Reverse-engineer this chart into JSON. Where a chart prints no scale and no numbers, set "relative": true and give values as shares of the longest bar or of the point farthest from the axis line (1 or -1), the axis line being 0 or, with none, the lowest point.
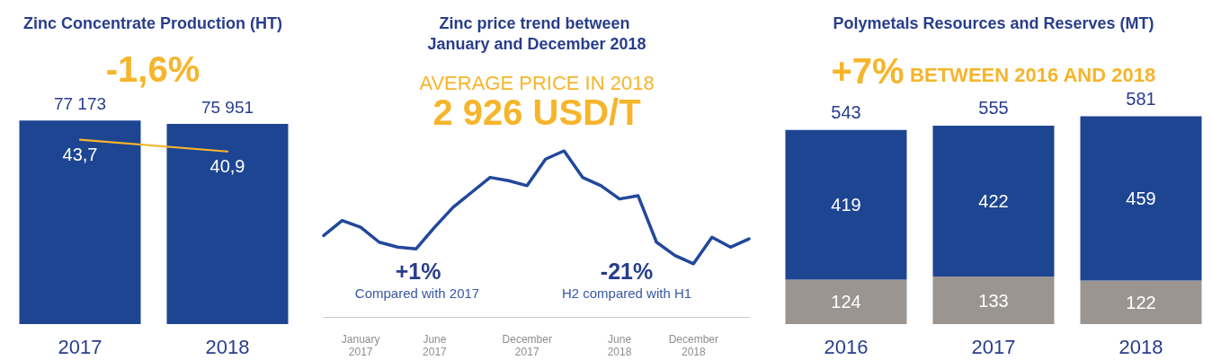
{
  "chart_data": [
    {
      "type": "bar",
      "title": "Zinc Concentrate Production (HT)",
      "subtitle": "-1,6%",
      "categories": [
        "2017",
        "2018"
      ],
      "series": [
        {
          "type": "bar",
          "color": "#1d4592",
          "values": [
            77173,
            75951
          ],
          "value_labels": [
            "77 173",
            "75 951"
          ]
        },
        {
          "type": "line",
          "axis": "y2",
          "color": "#f6b52b",
          "values": [
            43.7,
            40.9
          ],
          "value_labels": [
            "43,7",
            "40,9"
          ]
        }
      ],
      "tick_labels": "x",
      "marker": "none",
      "line_style": "solid"
    },
    {
      "type": "line",
      "title": "Zinc price trend between January and December 2018",
      "subtitle": "AVERAGE PRICE IN 2018",
      "annotations": [
        "2 926 USD/T",
        "+1%",
        "Compared with 2017",
        "-21%",
        "H2 compared with H1"
      ],
      "categories": [
        null,
        null,
        "January 2017",
        null,
        null,
        null,
        "June 2017",
        null,
        null,
        null,
        null,
        "December 2017",
        null,
        null,
        null,
        null,
        "June 2018",
        null,
        null,
        null,
        "December 2018",
        null,
        null,
        null
      ],
      "values": [
        0.49,
        0.58,
        0.54,
        0.45,
        0.42,
        0.41,
        0.54,
        0.66,
        0.75,
        0.84,
        0.82,
        0.79,
        0.95,
        1,
        0.84,
        0.79,
        0.71,
        0.73,
        0.45,
        0.37,
        0.32,
        0.48,
        0.42,
        0.47
      ],
      "color": "#22489a",
      "relative": true,
      "tick_labels": "x",
      "marker": "none",
      "line_style": "solid"
    },
    {
      "type": "bar",
      "title": "Polymetals Resources and Reserves (MT)",
      "subtitle": "+7% BETWEEN 2016 AND 2018",
      "categories": [
        "2016",
        "2017",
        "2018"
      ],
      "series": [
        {
          "color": "#9b9591",
          "values": [
            124,
            133,
            122
          ]
        },
        {
          "color": "#1d4592",
          "values": [
            419,
            422,
            459
          ]
        }
      ],
      "stacked": true,
      "data_labels": true,
      "totals": [
        "543",
        "555",
        "581"
      ],
      "tick_labels": "x"
    }
  ]
}
